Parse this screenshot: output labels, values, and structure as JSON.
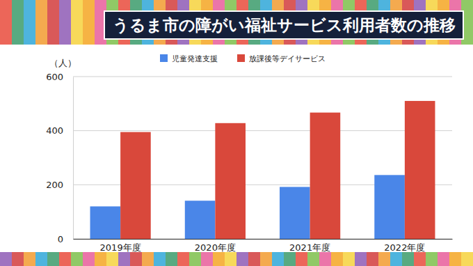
{
  "chart_data": {
    "type": "bar",
    "title": "うるま市の障がい福祉サービス利用者数の推移",
    "y_label": "（人）",
    "categories": [
      "2019年度",
      "2020年度",
      "2021年度",
      "2022年度"
    ],
    "series": [
      {
        "name": "児童発達支援",
        "color": "#4a86e8",
        "values": [
          120,
          141,
          192,
          236
        ]
      },
      {
        "name": "放課後等デイサービス",
        "color": "#d9483b",
        "values": [
          395,
          428,
          467,
          510
        ]
      }
    ],
    "ylim": [
      0,
      600
    ],
    "yticks": [
      0,
      200,
      400,
      600
    ],
    "grid": true,
    "legend": "top"
  }
}
